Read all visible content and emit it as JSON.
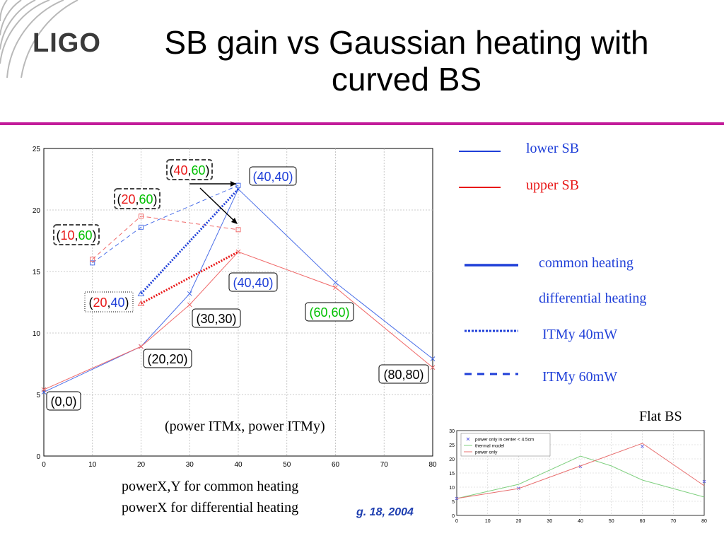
{
  "header": {
    "logo_text": "LIGO",
    "title_line1": "SB gain vs Gaussian heating with",
    "title_line2": "curved BS"
  },
  "legend": {
    "lower_sb": "lower SB",
    "upper_sb": "upper SB",
    "common_heating": "common heating",
    "differential_heating": "differential heating",
    "itmy_40": "ITMy 40mW",
    "itmy_60": "ITMy 60mW"
  },
  "notes": {
    "axis_note": "(power ITMx, power ITMy)",
    "power_common": "powerX,Y for common heating",
    "power_diff": "powerX for differential heating",
    "reference": "g. 18, 2004",
    "inset_title": "Flat BS"
  },
  "colors": {
    "lower": "#4a6ee8",
    "upper": "#f06a6a",
    "lower_strong": "#1f3fd8",
    "upper_strong": "#e81818",
    "green": "#00c000",
    "rule": "#c21c9a"
  },
  "chart_data": [
    {
      "type": "line",
      "title": "",
      "xlabel": "",
      "ylabel": "",
      "xlim": [
        0,
        80
      ],
      "ylim": [
        0,
        25
      ],
      "x_ticks": [
        "0",
        "10",
        "20",
        "30",
        "40",
        "50",
        "60",
        "70",
        "80"
      ],
      "y_ticks": [
        "0",
        "5",
        "10",
        "15",
        "20",
        "25"
      ],
      "grid": true,
      "series": [
        {
          "name": "lower SB",
          "style": "solid",
          "x": [
            0,
            20,
            30,
            40,
            60,
            80
          ],
          "y": [
            5.2,
            8.9,
            13.2,
            21.7,
            14.1,
            7.9
          ]
        },
        {
          "name": "upper SB",
          "style": "solid",
          "x": [
            0,
            20,
            30,
            40,
            60,
            80
          ],
          "y": [
            5.4,
            8.9,
            12.3,
            16.6,
            13.7,
            7.2
          ]
        },
        {
          "name": "lower SB",
          "style": "dashed",
          "x": [
            10,
            20,
            40
          ],
          "y": [
            15.7,
            18.6,
            22.0
          ]
        },
        {
          "name": "upper SB",
          "style": "dashed",
          "x": [
            10,
            20,
            40
          ],
          "y": [
            16.0,
            19.5,
            18.4
          ]
        },
        {
          "name": "lower SB",
          "style": "dotted",
          "x": [
            20,
            40
          ],
          "y": [
            13.2,
            21.7
          ]
        },
        {
          "name": "upper SB",
          "style": "dotted",
          "x": [
            20,
            40
          ],
          "y": [
            12.4,
            16.6
          ]
        }
      ],
      "annotations": [
        {
          "text": "(0,0)",
          "at": [
            0,
            5.2
          ]
        },
        {
          "text": "(20,20)",
          "at": [
            20,
            8.9
          ]
        },
        {
          "text": "(30,30)",
          "at": [
            30,
            12.3
          ]
        },
        {
          "text": "(40,40)",
          "at": [
            40,
            16.6
          ],
          "color": "blue"
        },
        {
          "text": "(40,40)",
          "at": [
            40,
            21.7
          ],
          "color": "blue"
        },
        {
          "text": "(60,60)",
          "at": [
            60,
            13.7
          ],
          "color": "green"
        },
        {
          "text": "(80,80)",
          "at": [
            80,
            7.2
          ]
        },
        {
          "parts": [
            "(",
            "10",
            ",",
            "60",
            ")"
          ],
          "at": [
            10,
            16
          ]
        },
        {
          "parts": [
            "(",
            "20",
            ",",
            "60",
            ")"
          ],
          "at": [
            20,
            19.5
          ]
        },
        {
          "parts": [
            "(",
            "40",
            ",",
            "60",
            ")"
          ],
          "at": [
            40,
            22
          ]
        },
        {
          "parts": [
            "(",
            "20",
            ",",
            "40",
            ")"
          ],
          "at": [
            20,
            12.4
          ]
        }
      ]
    },
    {
      "type": "line",
      "title": "Flat BS",
      "xlim": [
        0,
        80
      ],
      "ylim": [
        0,
        30
      ],
      "x_ticks": [
        "0",
        "10",
        "20",
        "30",
        "40",
        "50",
        "60",
        "70",
        "80"
      ],
      "y_ticks": [
        "0",
        "5",
        "10",
        "15",
        "20",
        "25",
        "30"
      ],
      "grid": true,
      "legend_position": "top-left",
      "series": [
        {
          "name": "power only in center < 4.5cm",
          "x": [
            0,
            20,
            40,
            60,
            80
          ],
          "y": [
            6,
            9.6,
            17.3,
            24.4,
            12
          ]
        },
        {
          "name": "thermal model",
          "x": [
            0,
            20,
            40,
            50,
            60,
            80
          ],
          "y": [
            6,
            11,
            21,
            17.5,
            12.5,
            6.5
          ]
        },
        {
          "name": "power only",
          "x": [
            0,
            20,
            40,
            60,
            80
          ],
          "y": [
            6,
            9.5,
            17.5,
            25.5,
            10.5
          ]
        }
      ]
    }
  ]
}
